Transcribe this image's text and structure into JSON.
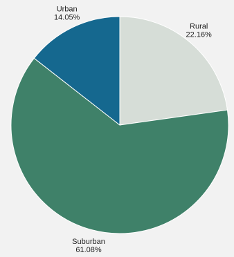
{
  "chart_data": {
    "type": "pie",
    "title": "",
    "legend": "none",
    "slices": [
      {
        "label": "Rural",
        "value": 22.16,
        "value_label": "22.16%",
        "color": "#d6ddd7"
      },
      {
        "label": "Suburban",
        "value": 61.08,
        "value_label": "61.08%",
        "color": "#3f8169"
      },
      {
        "label": "Urban",
        "value": 14.05,
        "value_label": "14.05%",
        "color": "#15688f"
      }
    ]
  }
}
